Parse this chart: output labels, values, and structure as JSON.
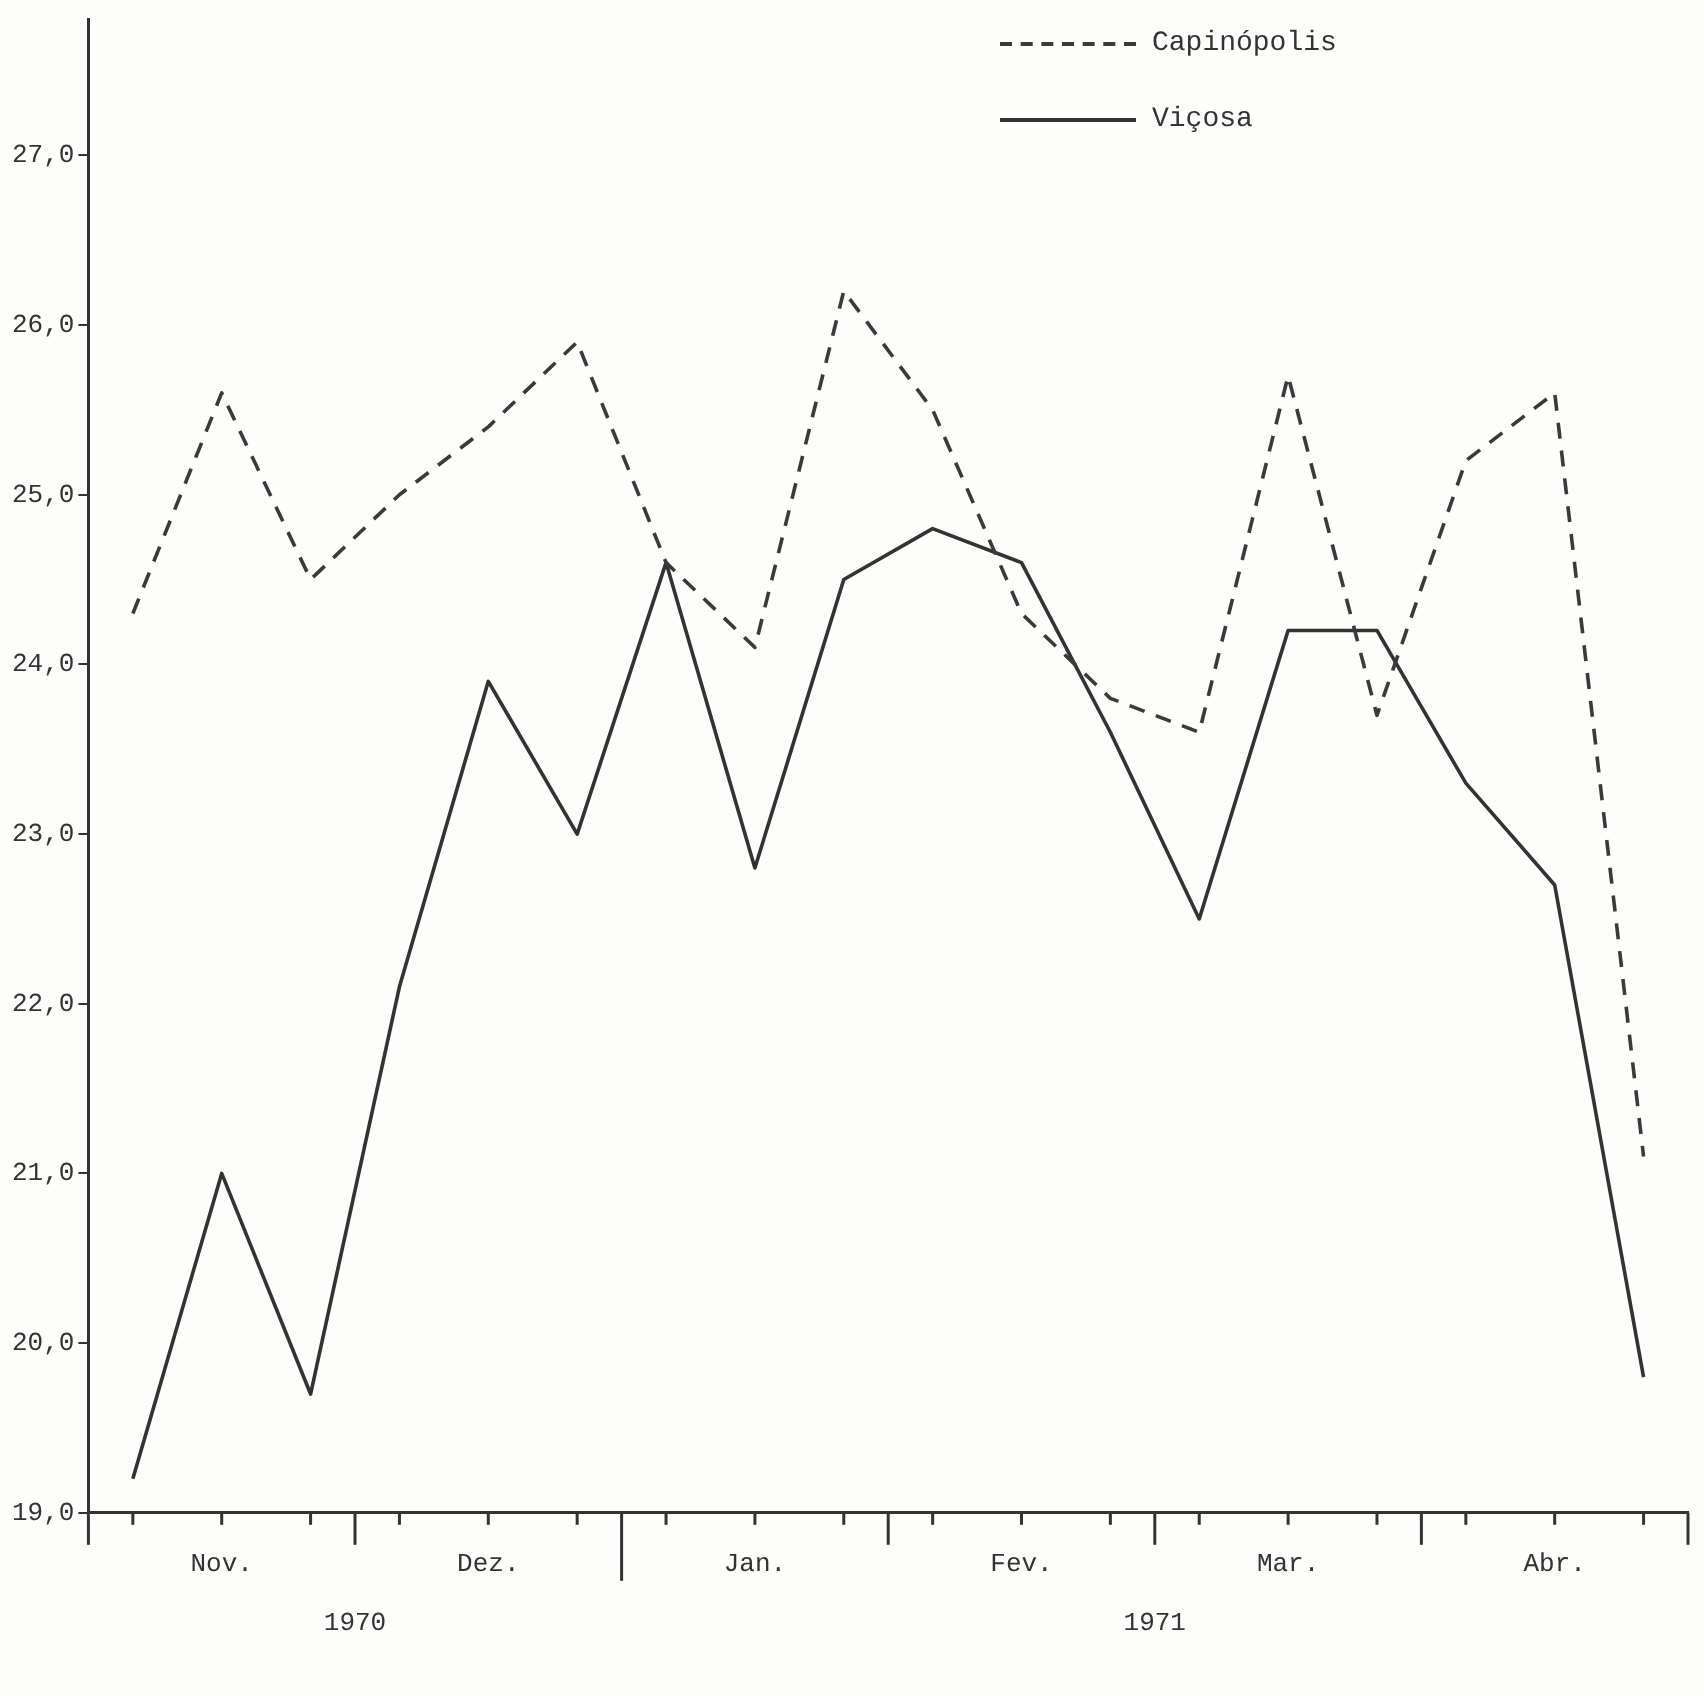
{
  "chart_data": {
    "type": "line",
    "categories": [
      null,
      "Nov.",
      null,
      null,
      "Dez.",
      null,
      null,
      "Jan.",
      null,
      null,
      "Fev.",
      null,
      null,
      "Mar.",
      null,
      null,
      "Abr.",
      null
    ],
    "series": [
      {
        "name": "Capinópolis",
        "color": "#3a3a3a",
        "line_style": "dashed",
        "values": [
          24.3,
          25.6,
          24.5,
          25.0,
          25.4,
          25.9,
          24.6,
          24.1,
          26.2,
          25.5,
          24.3,
          23.8,
          23.6,
          25.7,
          23.7,
          25.2,
          25.6,
          21.1
        ]
      },
      {
        "name": "Viçosa",
        "color": "#333333",
        "line_style": "solid",
        "values": [
          19.2,
          21.0,
          19.7,
          22.1,
          23.9,
          23.0,
          24.6,
          22.8,
          24.5,
          24.8,
          24.6,
          23.6,
          22.5,
          24.2,
          24.2,
          23.3,
          22.7,
          19.8
        ]
      }
    ],
    "ylim": [
      19,
      27.8
    ],
    "yticks": [
      {
        "value": 19,
        "label": "19,0"
      },
      {
        "value": 20,
        "label": "20,0"
      },
      {
        "value": 21,
        "label": "21,0"
      },
      {
        "value": 22,
        "label": "22,0"
      },
      {
        "value": 23,
        "label": "23,0"
      },
      {
        "value": 24,
        "label": "24,0"
      },
      {
        "value": 25,
        "label": "25,0"
      },
      {
        "value": 26,
        "label": "26,0"
      },
      {
        "value": 27,
        "label": "27,0"
      }
    ],
    "annotations": [
      "1970",
      "1971"
    ],
    "legend": "top right",
    "grid": false,
    "marker": "none"
  }
}
